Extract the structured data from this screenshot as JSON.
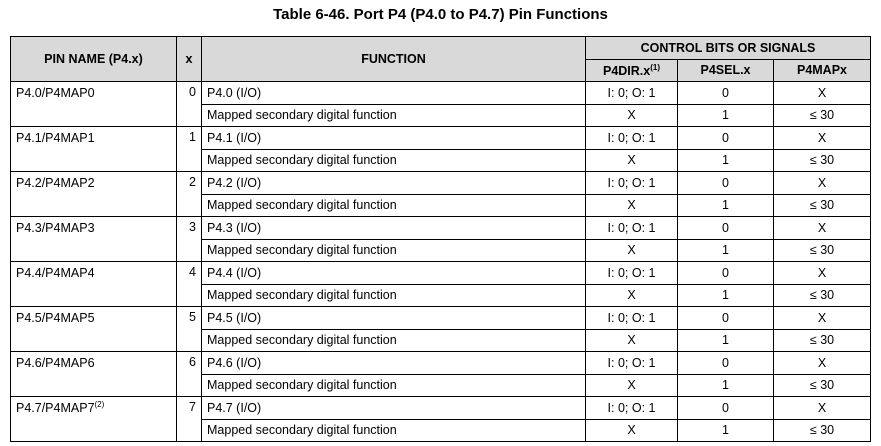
{
  "title": "Table 6-46. Port P4 (P4.0 to P4.7) Pin Functions",
  "headers": {
    "pin_name": "PIN NAME (P4.x)",
    "x": "x",
    "function": "FUNCTION",
    "control": "CONTROL BITS OR SIGNALS",
    "p4dir": "P4DIR.x",
    "p4dir_note": "(1)",
    "p4sel": "P4SEL.x",
    "p4map": "P4MAPx"
  },
  "rows": [
    {
      "pin": "P4.0/P4MAP0",
      "note": "",
      "x": "0",
      "funcs": [
        {
          "name": "P4.0 (I/O)",
          "dir": "I: 0; O: 1",
          "sel": "0",
          "map": "X"
        },
        {
          "name": "Mapped secondary digital function",
          "dir": "X",
          "sel": "1",
          "map": "≤ 30"
        }
      ]
    },
    {
      "pin": "P4.1/P4MAP1",
      "note": "",
      "x": "1",
      "funcs": [
        {
          "name": "P4.1 (I/O)",
          "dir": "I: 0; O: 1",
          "sel": "0",
          "map": "X"
        },
        {
          "name": "Mapped secondary digital function",
          "dir": "X",
          "sel": "1",
          "map": "≤ 30"
        }
      ]
    },
    {
      "pin": "P4.2/P4MAP2",
      "note": "",
      "x": "2",
      "funcs": [
        {
          "name": "P4.2 (I/O)",
          "dir": "I: 0; O: 1",
          "sel": "0",
          "map": "X"
        },
        {
          "name": "Mapped secondary digital function",
          "dir": "X",
          "sel": "1",
          "map": "≤ 30"
        }
      ]
    },
    {
      "pin": "P4.3/P4MAP3",
      "note": "",
      "x": "3",
      "funcs": [
        {
          "name": "P4.3 (I/O)",
          "dir": "I: 0; O: 1",
          "sel": "0",
          "map": "X"
        },
        {
          "name": "Mapped secondary digital function",
          "dir": "X",
          "sel": "1",
          "map": "≤ 30"
        }
      ]
    },
    {
      "pin": "P4.4/P4MAP4",
      "note": "",
      "x": "4",
      "funcs": [
        {
          "name": "P4.4 (I/O)",
          "dir": "I: 0; O: 1",
          "sel": "0",
          "map": "X"
        },
        {
          "name": "Mapped secondary digital function",
          "dir": "X",
          "sel": "1",
          "map": "≤ 30"
        }
      ]
    },
    {
      "pin": "P4.5/P4MAP5",
      "note": "",
      "x": "5",
      "funcs": [
        {
          "name": "P4.5 (I/O)",
          "dir": "I: 0; O: 1",
          "sel": "0",
          "map": "X"
        },
        {
          "name": "Mapped secondary digital function",
          "dir": "X",
          "sel": "1",
          "map": "≤ 30"
        }
      ]
    },
    {
      "pin": "P4.6/P4MAP6",
      "note": "",
      "x": "6",
      "funcs": [
        {
          "name": "P4.6 (I/O)",
          "dir": "I: 0; O: 1",
          "sel": "0",
          "map": "X"
        },
        {
          "name": "Mapped secondary digital function",
          "dir": "X",
          "sel": "1",
          "map": "≤ 30"
        }
      ]
    },
    {
      "pin": "P4.7/P4MAP7",
      "note": "(2)",
      "x": "7",
      "funcs": [
        {
          "name": "P4.7 (I/O)",
          "dir": "I: 0; O: 1",
          "sel": "0",
          "map": "X"
        },
        {
          "name": "Mapped secondary digital function",
          "dir": "X",
          "sel": "1",
          "map": "≤ 30"
        }
      ]
    }
  ]
}
